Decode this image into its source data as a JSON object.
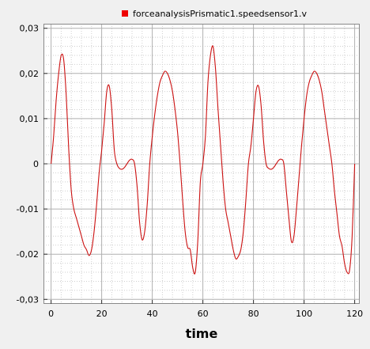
{
  "chart_data": {
    "type": "line",
    "title": "",
    "xlabel": "time",
    "ylabel": "",
    "xlim": [
      -3,
      122
    ],
    "ylim": [
      -0.031,
      0.031
    ],
    "grid": true,
    "legend_position": "top",
    "x_ticks": [
      0,
      20,
      40,
      60,
      80,
      100,
      120
    ],
    "x_tick_labels": [
      "0",
      "20",
      "40",
      "60",
      "80",
      "100",
      "120"
    ],
    "y_ticks": [
      -0.03,
      -0.02,
      -0.01,
      0,
      0.01,
      0.02,
      0.03
    ],
    "y_tick_labels": [
      "-0,03",
      "-0,02",
      "-0,01",
      "0",
      "0,01",
      "0,02",
      "0,03"
    ],
    "colors": {
      "series": "#cc1111",
      "legend_swatch": "#ee0000",
      "plot_bg": "#ffffff",
      "grid_major": "#b0b0b0",
      "grid_minor": "#cfcfcf"
    },
    "series": [
      {
        "name": "forceanalysisPrismatic1.speedsensor1.v",
        "x": [
          0,
          1,
          2,
          3,
          4,
          5,
          6,
          7,
          8,
          9,
          10,
          11,
          12,
          13,
          14,
          15,
          16,
          17,
          18,
          19,
          20,
          21,
          22,
          23,
          24,
          25,
          26,
          27,
          28,
          29,
          30,
          31,
          32,
          33,
          34,
          35,
          36,
          37,
          38,
          39,
          40,
          41,
          42,
          43,
          44,
          45,
          46,
          47,
          48,
          49,
          50,
          51,
          52,
          53,
          54,
          55,
          56,
          57,
          58,
          59,
          60,
          61,
          62,
          63,
          64,
          65,
          66,
          67,
          68,
          69,
          70,
          71,
          72,
          73,
          74,
          75,
          76,
          77,
          78,
          79,
          80,
          81,
          82,
          83,
          84,
          85,
          86,
          87,
          88,
          89,
          90,
          91,
          92,
          93,
          94,
          95,
          96,
          97,
          98,
          99,
          100,
          101,
          102,
          103,
          104,
          105,
          106,
          107,
          108,
          109,
          110,
          111,
          112,
          113,
          114,
          115,
          116,
          117,
          118,
          119,
          120
        ],
        "y": [
          0.0,
          0.006,
          0.014,
          0.02,
          0.024,
          0.023,
          0.015,
          0.003,
          -0.006,
          -0.01,
          -0.012,
          -0.014,
          -0.016,
          -0.018,
          -0.019,
          -0.0203,
          -0.019,
          -0.015,
          -0.009,
          -0.002,
          0.003,
          0.009,
          0.016,
          0.0172,
          0.012,
          0.003,
          0.0,
          -0.001,
          -0.0012,
          -0.0008,
          0.0,
          0.0008,
          0.001,
          0.0,
          -0.005,
          -0.013,
          -0.0168,
          -0.015,
          -0.009,
          0.0,
          0.006,
          0.011,
          0.015,
          0.018,
          0.0195,
          0.0205,
          0.02,
          0.0185,
          0.016,
          0.012,
          0.007,
          0.0,
          -0.008,
          -0.015,
          -0.0185,
          -0.019,
          -0.023,
          -0.024,
          -0.017,
          -0.004,
          0.0,
          0.006,
          0.018,
          0.024,
          0.026,
          0.021,
          0.012,
          0.004,
          -0.004,
          -0.01,
          -0.013,
          -0.016,
          -0.019,
          -0.021,
          -0.0205,
          -0.019,
          -0.015,
          -0.008,
          0.0,
          0.004,
          0.01,
          0.016,
          0.0172,
          0.013,
          0.005,
          0.0,
          -0.001,
          -0.0012,
          -0.0008,
          0.0,
          0.0008,
          0.001,
          0.0,
          -0.006,
          -0.012,
          -0.0172,
          -0.016,
          -0.01,
          -0.003,
          0.004,
          0.01,
          0.015,
          0.018,
          0.0195,
          0.0205,
          0.02,
          0.0185,
          0.016,
          0.012,
          0.008,
          0.004,
          0.0,
          -0.006,
          -0.011,
          -0.016,
          -0.0182,
          -0.022,
          -0.024,
          -0.0235,
          -0.016,
          0.0
        ]
      }
    ]
  }
}
